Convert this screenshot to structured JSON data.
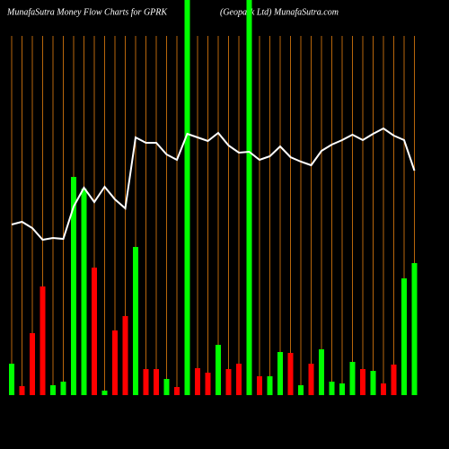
{
  "chart_data": {
    "type": "bar-line",
    "title": "MunafaSutra  Money Flow  Charts for GPRK",
    "subtitle": "(Geopark Ltd) MunafaSutra.com",
    "categories": [
      null,
      null,
      null,
      null,
      null,
      null,
      null,
      null,
      null,
      null,
      null,
      null,
      null,
      null,
      null,
      null,
      null,
      null,
      null,
      null,
      null,
      null,
      null,
      null,
      null,
      null,
      null,
      null,
      null,
      null,
      null,
      null,
      null,
      null,
      null,
      null,
      null,
      null,
      null,
      null
    ],
    "ylim": [
      0,
      440
    ],
    "grid": true,
    "grid_color": "#b8660b",
    "bars": {
      "values": [
        35,
        10,
        69,
        121,
        11,
        15,
        243,
        230,
        142,
        5,
        72,
        88,
        165,
        29,
        29,
        18,
        9,
        440,
        30,
        25,
        56,
        29,
        35,
        440,
        21,
        21,
        48,
        47,
        11,
        35,
        51,
        15,
        13,
        37,
        29,
        27,
        13,
        34,
        130,
        147
      ],
      "colors": [
        "#00ff00",
        "#ff0000",
        "#ff0000",
        "#ff0000",
        "#00ff00",
        "#00ff00",
        "#00ff00",
        "#00ff00",
        "#ff0000",
        "#00ff00",
        "#ff0000",
        "#ff0000",
        "#00ff00",
        "#ff0000",
        "#ff0000",
        "#00ff00",
        "#ff0000",
        "#00ff00",
        "#ff0000",
        "#ff0000",
        "#00ff00",
        "#ff0000",
        "#ff0000",
        "#00ff00",
        "#ff0000",
        "#00ff00",
        "#00ff00",
        "#ff0000",
        "#00ff00",
        "#ff0000",
        "#00ff00",
        "#00ff00",
        "#00ff00",
        "#00ff00",
        "#ff0000",
        "#00ff00",
        "#ff0000",
        "#ff0000",
        "#00ff00",
        "#00ff00"
      ]
    },
    "line": {
      "color": "#ffffff",
      "values": [
        190,
        193,
        186,
        173,
        175,
        174,
        210,
        231,
        215,
        232,
        218,
        208,
        287,
        281,
        281,
        268,
        262,
        291,
        287,
        283,
        292,
        278,
        270,
        271,
        262,
        266,
        277,
        265,
        260,
        256,
        272,
        279,
        284,
        290,
        284,
        291,
        297,
        289,
        284,
        250
      ]
    }
  }
}
